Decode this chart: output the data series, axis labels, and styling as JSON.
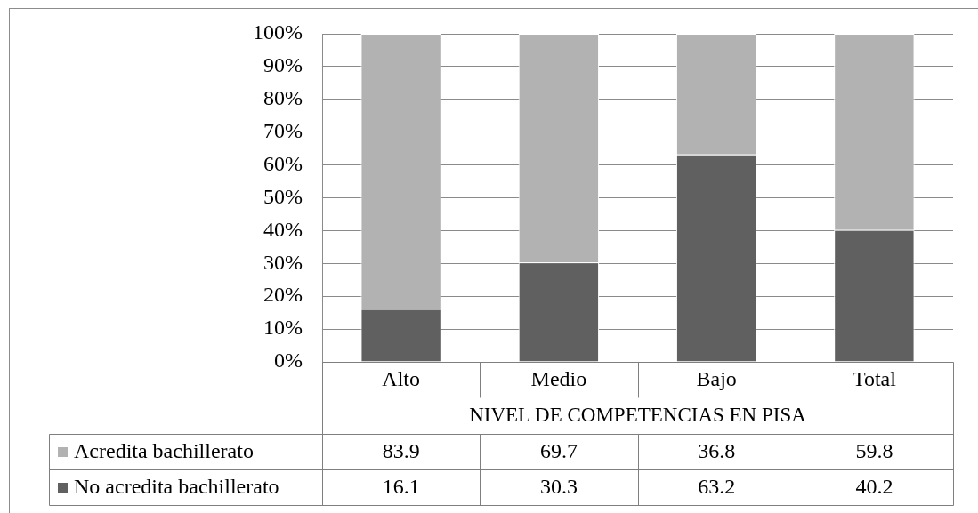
{
  "chart_data": {
    "type": "bar",
    "xlabel": "NIVEL DE COMPETENCIAS EN PISA",
    "categories": [
      "Alto",
      "Medio",
      "Bajo",
      "Total"
    ],
    "series": [
      {
        "name": "No acredita bachillerato",
        "color": "#606060",
        "values": [
          16.1,
          30.3,
          63.2,
          40.2
        ]
      },
      {
        "name": "Acredita bachillerato",
        "color": "#b2b2b2",
        "values": [
          83.9,
          69.7,
          36.8,
          59.8
        ]
      }
    ],
    "stacked": true,
    "ylim": [
      0,
      100
    ],
    "yticks": [
      {
        "value": 0,
        "label": "0%"
      },
      {
        "value": 10,
        "label": "10%"
      },
      {
        "value": 20,
        "label": "20%"
      },
      {
        "value": 30,
        "label": "30%"
      },
      {
        "value": 40,
        "label": "40%"
      },
      {
        "value": 50,
        "label": "50%"
      },
      {
        "value": 60,
        "label": "60%"
      },
      {
        "value": 70,
        "label": "70%"
      },
      {
        "value": 80,
        "label": "80%"
      },
      {
        "value": 90,
        "label": "90%"
      },
      {
        "value": 100,
        "label": "100%"
      }
    ],
    "grid": "y",
    "legend": "bottom",
    "data_labels": true
  }
}
